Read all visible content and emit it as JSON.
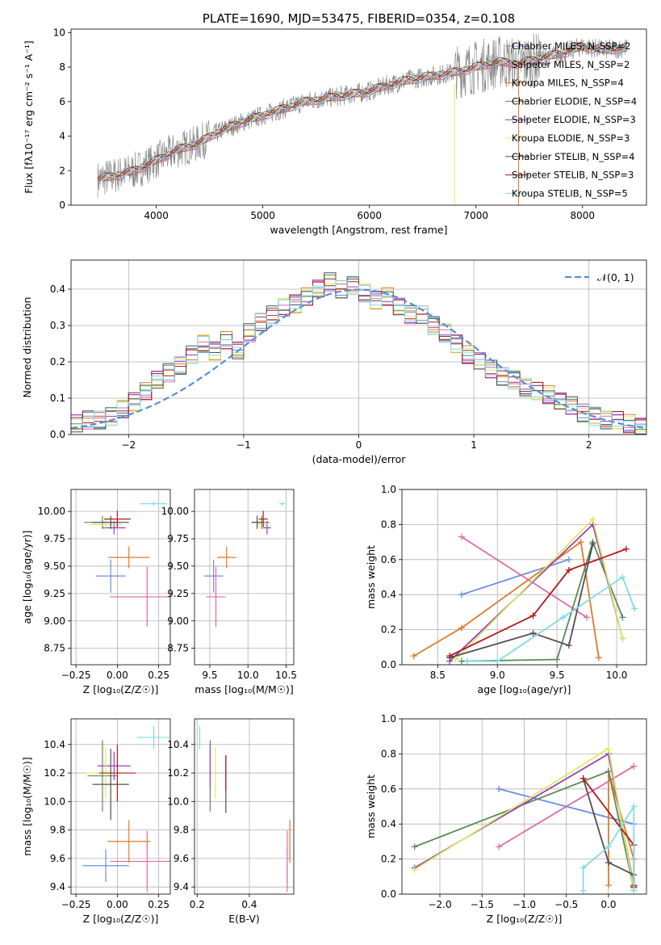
{
  "colors": {
    "chab_miles": "#6a8fdc",
    "salp_miles": "#e06aa8",
    "krou_miles": "#e07a28",
    "chab_elodie": "#5a8a5a",
    "salp_elodie": "#9a3cc0",
    "krou_elodie": "#d8ec60",
    "chab_stelib": "#505050",
    "salp_stelib": "#b01a1a",
    "krou_stelib": "#80dce4",
    "data": "#808080",
    "normal": "#5b8dd6"
  },
  "chart_data": [
    {
      "type": "line",
      "panel": "spectrum",
      "title": "PLATE=1690, MJD=53475, FIBERID=0354, z=0.108",
      "xlabel": "wavelength [Angstrom, rest frame]",
      "ylabel": "Flux [fλ10⁻¹⁷ erg cm⁻² s⁻¹ A⁻¹]",
      "xlim": [
        3200,
        8600
      ],
      "ylim": [
        0,
        10.2
      ],
      "xticks": [
        4000,
        5000,
        6000,
        7000,
        8000
      ],
      "yticks": [
        0,
        2,
        4,
        6,
        8,
        10
      ],
      "grid": false,
      "legend": "upper right",
      "x": [
        3450,
        3600,
        3800,
        4000,
        4200,
        4400,
        4600,
        4800,
        5000,
        5200,
        5400,
        5600,
        5800,
        6000,
        6200,
        6400,
        6600,
        6800,
        7000,
        7200,
        7400,
        7600,
        7800,
        8000,
        8200,
        8400
      ],
      "model": [
        1.5,
        1.7,
        2.0,
        2.6,
        3.2,
        3.6,
        4.3,
        4.8,
        5.2,
        5.6,
        6.0,
        6.2,
        6.4,
        6.6,
        7.0,
        7.3,
        7.5,
        7.7,
        8.0,
        8.3,
        8.2,
        8.5,
        8.8,
        9.2,
        9.0,
        9.1
      ],
      "series": [
        {
          "name": "Chabrier MILES, N_SSP=2"
        },
        {
          "name": "Salpeter MILES, N_SSP=2"
        },
        {
          "name": "Kroupa MILES, N_SSP=4"
        },
        {
          "name": "Chabrier ELODIE, N_SSP=4"
        },
        {
          "name": "Salpeter ELODIE, N_SSP=3"
        },
        {
          "name": "Kroupa ELODIE, N_SSP=3"
        },
        {
          "name": "Chabrier STELIB, N_SSP=4"
        },
        {
          "name": "Salpeter STELIB, N_SSP=3"
        },
        {
          "name": "Kroupa STELIB, N_SSP=5"
        }
      ]
    },
    {
      "type": "bar",
      "panel": "residuals",
      "xlabel": "(data-model)/error",
      "ylabel": "Normed distribution",
      "xlim": [
        -2.5,
        2.5
      ],
      "ylim": [
        0,
        0.48
      ],
      "xticks": [
        -2,
        -1,
        0,
        1,
        2
      ],
      "yticks": [
        0.0,
        0.1,
        0.2,
        0.3,
        0.4
      ],
      "grid": true,
      "legend": "upper right",
      "normal_label": "𝒩(0, 1)",
      "bin_width": 0.1,
      "bin_centers": [
        -2.45,
        -2.35,
        -2.25,
        -2.15,
        -2.05,
        -1.95,
        -1.85,
        -1.75,
        -1.65,
        -1.55,
        -1.45,
        -1.35,
        -1.25,
        -1.15,
        -1.05,
        -0.95,
        -0.85,
        -0.75,
        -0.65,
        -0.55,
        -0.45,
        -0.35,
        -0.25,
        -0.15,
        -0.05,
        0.05,
        0.15,
        0.25,
        0.35,
        0.45,
        0.55,
        0.65,
        0.75,
        0.85,
        0.95,
        1.05,
        1.15,
        1.25,
        1.35,
        1.45,
        1.55,
        1.65,
        1.75,
        1.85,
        1.95,
        2.05,
        2.15,
        2.25,
        2.35,
        2.45
      ],
      "values": [
        0.03,
        0.04,
        0.04,
        0.05,
        0.07,
        0.09,
        0.12,
        0.15,
        0.17,
        0.19,
        0.22,
        0.25,
        0.23,
        0.26,
        0.23,
        0.28,
        0.31,
        0.33,
        0.35,
        0.36,
        0.38,
        0.4,
        0.42,
        0.4,
        0.41,
        0.39,
        0.37,
        0.38,
        0.35,
        0.33,
        0.33,
        0.3,
        0.28,
        0.25,
        0.22,
        0.2,
        0.18,
        0.16,
        0.15,
        0.13,
        0.12,
        0.11,
        0.09,
        0.08,
        0.06,
        0.05,
        0.04,
        0.04,
        0.03,
        0.02
      ]
    },
    {
      "type": "scatter",
      "panel": "age-vs-Z",
      "xlabel": "Z [log₁₀(Z/Z☉)]",
      "ylabel": "age  [log₁₀(age/yr)]",
      "xlim": [
        -0.28,
        0.32
      ],
      "ylim": [
        8.6,
        10.2
      ],
      "xticks": [
        -0.25,
        0.0,
        0.25
      ],
      "xticklabels": [
        "−0.25",
        "0.00",
        "0.25"
      ],
      "yticks": [
        8.75,
        9.0,
        9.25,
        9.5,
        9.75,
        10.0
      ],
      "yticklabels": [
        "8.75",
        "9.00",
        "9.25",
        "9.50",
        "9.75",
        "10.00"
      ],
      "grid": true,
      "points": [
        {
          "c": "chab_miles",
          "x": -0.04,
          "y": 9.41,
          "xe": 0.18,
          "ye": 0.3
        },
        {
          "c": "salp_miles",
          "x": 0.18,
          "y": 9.22,
          "xe": 0.45,
          "ye": 0.55
        },
        {
          "c": "krou_miles",
          "x": 0.07,
          "y": 9.58,
          "xe": 0.25,
          "ye": 0.2
        },
        {
          "c": "chab_elodie",
          "x": -0.09,
          "y": 9.9,
          "xe": 0.22,
          "ye": 0.12
        },
        {
          "c": "salp_elodie",
          "x": -0.02,
          "y": 9.85,
          "xe": 0.14,
          "ye": 0.12
        },
        {
          "c": "krou_elodie",
          "x": -0.07,
          "y": 9.88,
          "xe": 0.2,
          "ye": 0.1
        },
        {
          "c": "chab_stelib",
          "x": -0.04,
          "y": 9.9,
          "xe": 0.22,
          "ye": 0.12
        },
        {
          "c": "salp_stelib",
          "x": 0.0,
          "y": 9.93,
          "xe": 0.16,
          "ye": 0.15
        },
        {
          "c": "krou_stelib",
          "x": 0.22,
          "y": 10.07,
          "xe": 0.16,
          "ye": 0.04
        }
      ]
    },
    {
      "type": "scatter",
      "panel": "age-vs-mass",
      "xlabel": "mass [log₁₀(M/M☉)]",
      "ylabel": "",
      "xlim": [
        9.3,
        10.6
      ],
      "ylim": [
        8.6,
        10.2
      ],
      "xticks": [
        9.5,
        10.0,
        10.5
      ],
      "xticklabels": [
        "9.5",
        "10.0",
        "10.5"
      ],
      "yticks": [
        8.75,
        9.0,
        9.25,
        9.5,
        9.75,
        10.0
      ],
      "yticklabels": [
        "8.75",
        "9.00",
        "9.25",
        "9.50",
        "9.75",
        "10.00"
      ],
      "grid": true,
      "points": [
        {
          "c": "chab_miles",
          "x": 9.55,
          "y": 9.41,
          "xe": 0.25,
          "ye": 0.3
        },
        {
          "c": "salp_miles",
          "x": 9.58,
          "y": 9.22,
          "xe": 0.25,
          "ye": 0.55
        },
        {
          "c": "krou_miles",
          "x": 9.72,
          "y": 9.58,
          "xe": 0.25,
          "ye": 0.2
        },
        {
          "c": "chab_elodie",
          "x": 10.18,
          "y": 9.9,
          "xe": 0.2,
          "ye": 0.12
        },
        {
          "c": "salp_elodie",
          "x": 10.25,
          "y": 9.85,
          "xe": 0.1,
          "ye": 0.12
        },
        {
          "c": "krou_elodie",
          "x": 10.2,
          "y": 9.88,
          "xe": 0.15,
          "ye": 0.1
        },
        {
          "c": "chab_stelib",
          "x": 10.12,
          "y": 9.9,
          "xe": 0.15,
          "ye": 0.12
        },
        {
          "c": "salp_stelib",
          "x": 10.2,
          "y": 9.93,
          "xe": 0.12,
          "ye": 0.15
        },
        {
          "c": "krou_stelib",
          "x": 10.45,
          "y": 10.07,
          "xe": 0.08,
          "ye": 0.04
        }
      ]
    },
    {
      "type": "line",
      "panel": "weight-vs-age",
      "xlabel": "age  [log₁₀(age/yr)]",
      "ylabel": "mass weight",
      "xlim": [
        8.2,
        10.25
      ],
      "ylim": [
        0,
        1.0
      ],
      "xticks": [
        8.5,
        9.0,
        9.5,
        10.0
      ],
      "xticklabels": [
        "8.5",
        "9.0",
        "9.5",
        "10.0"
      ],
      "yticks": [
        0.0,
        0.2,
        0.4,
        0.6,
        0.8,
        1.0
      ],
      "yticklabels": [
        "0.0",
        "0.2",
        "0.4",
        "0.6",
        "0.8",
        "1.0"
      ],
      "grid": true,
      "series": [
        {
          "c": "chab_miles",
          "x": [
            8.7,
            9.6
          ],
          "y": [
            0.4,
            0.6
          ]
        },
        {
          "c": "salp_miles",
          "x": [
            8.7,
            9.75
          ],
          "y": [
            0.73,
            0.27
          ]
        },
        {
          "c": "krou_miles",
          "x": [
            8.3,
            8.7,
            9.7,
            9.85
          ],
          "y": [
            0.05,
            0.21,
            0.7,
            0.04
          ]
        },
        {
          "c": "chab_elodie",
          "x": [
            8.7,
            9.5,
            9.8,
            10.05
          ],
          "y": [
            0.02,
            0.03,
            0.7,
            0.27
          ]
        },
        {
          "c": "salp_elodie",
          "x": [
            8.6,
            9.8,
            10.05
          ],
          "y": [
            0.02,
            0.8,
            0.15
          ]
        },
        {
          "c": "krou_elodie",
          "x": [
            8.65,
            9.8,
            10.05
          ],
          "y": [
            0.03,
            0.83,
            0.15
          ]
        },
        {
          "c": "chab_stelib",
          "x": [
            8.6,
            9.3,
            9.6,
            9.8
          ],
          "y": [
            0.04,
            0.18,
            0.11,
            0.69
          ]
        },
        {
          "c": "salp_stelib",
          "x": [
            8.6,
            9.3,
            9.6,
            10.08
          ],
          "y": [
            0.05,
            0.28,
            0.54,
            0.66
          ]
        },
        {
          "c": "krou_stelib",
          "x": [
            8.75,
            9.0,
            9.55,
            10.05,
            10.15
          ],
          "y": [
            0.02,
            0.02,
            0.27,
            0.5,
            0.32
          ]
        }
      ]
    },
    {
      "type": "scatter",
      "panel": "mass-vs-Z",
      "xlabel": "Z [log₁₀(Z/Z☉)]",
      "ylabel": "mass [log₁₀(M/M☉)]",
      "xlim": [
        -0.28,
        0.32
      ],
      "ylim": [
        9.35,
        10.58
      ],
      "xticks": [
        -0.25,
        0.0,
        0.25
      ],
      "xticklabels": [
        "−0.25",
        "0.00",
        "0.25"
      ],
      "yticks": [
        9.4,
        9.6,
        9.8,
        10.0,
        10.2,
        10.4
      ],
      "yticklabels": [
        "9.4",
        "9.6",
        "9.8",
        "10.0",
        "10.2",
        "10.4"
      ],
      "grid": true,
      "points": [
        {
          "c": "chab_miles",
          "x": -0.07,
          "y": 9.55,
          "xe": 0.28,
          "ye": 0.23
        },
        {
          "c": "salp_miles",
          "x": 0.18,
          "y": 9.58,
          "xe": 0.45,
          "ye": 0.43
        },
        {
          "c": "krou_miles",
          "x": 0.07,
          "y": 9.72,
          "xe": 0.26,
          "ye": 0.3
        },
        {
          "c": "chab_elodie",
          "x": -0.09,
          "y": 10.18,
          "xe": 0.18,
          "ye": 0.5
        },
        {
          "c": "salp_elodie",
          "x": -0.02,
          "y": 10.25,
          "xe": 0.2,
          "ye": 0.2
        },
        {
          "c": "krou_elodie",
          "x": -0.07,
          "y": 10.2,
          "xe": 0.24,
          "ye": 0.36
        },
        {
          "c": "chab_stelib",
          "x": -0.04,
          "y": 10.12,
          "xe": 0.22,
          "ye": 0.5
        },
        {
          "c": "salp_stelib",
          "x": 0.0,
          "y": 10.2,
          "xe": 0.22,
          "ye": 0.4
        },
        {
          "c": "krou_stelib",
          "x": 0.22,
          "y": 10.45,
          "xe": 0.2,
          "ye": 0.16
        }
      ]
    },
    {
      "type": "scatter",
      "panel": "mass-vs-ebv",
      "xlabel": "E(B-V)",
      "ylabel": "",
      "xlim": [
        0.19,
        0.57
      ],
      "ylim": [
        9.35,
        10.58
      ],
      "xticks": [
        0.2,
        0.4
      ],
      "xticklabels": [
        "0.2",
        "0.4"
      ],
      "yticks": [
        9.4,
        9.6,
        9.8,
        10.0,
        10.2,
        10.4
      ],
      "yticklabels": [
        "9.4",
        "9.6",
        "9.8",
        "10.0",
        "10.2",
        "10.4"
      ],
      "grid": true,
      "points": [
        {
          "c": "chab_miles",
          "x": 0.545,
          "y": 9.55,
          "xe": 0,
          "ye": 0.23
        },
        {
          "c": "salp_miles",
          "x": 0.545,
          "y": 9.58,
          "xe": 0,
          "ye": 0.43
        },
        {
          "c": "krou_miles",
          "x": 0.555,
          "y": 9.72,
          "xe": 0,
          "ye": 0.3
        },
        {
          "c": "chab_elodie",
          "x": 0.25,
          "y": 10.18,
          "xe": 0,
          "ye": 0.5
        },
        {
          "c": "salp_elodie",
          "x": 0.25,
          "y": 10.25,
          "xe": 0,
          "ye": 0.3
        },
        {
          "c": "krou_elodie",
          "x": 0.27,
          "y": 10.2,
          "xe": 0,
          "ye": 0.36
        },
        {
          "c": "chab_stelib",
          "x": 0.31,
          "y": 10.12,
          "xe": 0,
          "ye": 0.4
        },
        {
          "c": "salp_stelib",
          "x": 0.31,
          "y": 10.2,
          "xe": 0,
          "ye": 0.25
        },
        {
          "c": "krou_stelib",
          "x": 0.21,
          "y": 10.45,
          "xe": 0,
          "ye": 0.16
        }
      ]
    },
    {
      "type": "line",
      "panel": "weight-vs-Z",
      "xlabel": "Z [log₁₀(Z/Z☉)]",
      "ylabel": "mass weight",
      "xlim": [
        -2.45,
        0.45
      ],
      "ylim": [
        0,
        1.0
      ],
      "xticks": [
        -2.0,
        -1.5,
        -1.0,
        -0.5,
        0.0
      ],
      "xticklabels": [
        "−2.0",
        "−1.5",
        "−1.0",
        "−0.5",
        "0.0"
      ],
      "yticks": [
        0.0,
        0.2,
        0.4,
        0.6,
        0.8,
        1.0
      ],
      "yticklabels": [
        "0.0",
        "0.2",
        "0.4",
        "0.6",
        "0.8",
        "1.0"
      ],
      "grid": true,
      "series": [
        {
          "c": "chab_miles",
          "x": [
            -1.3,
            0.3
          ],
          "y": [
            0.6,
            0.4
          ]
        },
        {
          "c": "salp_miles",
          "x": [
            -1.3,
            0.3
          ],
          "y": [
            0.27,
            0.73
          ]
        },
        {
          "c": "krou_miles",
          "x": [
            0.0,
            0.0,
            0.3,
            0.3
          ],
          "y": [
            0.05,
            0.7,
            0.2,
            0.04
          ]
        },
        {
          "c": "chab_elodie",
          "x": [
            -2.3,
            0.0,
            0.3
          ],
          "y": [
            0.27,
            0.7,
            0.03
          ]
        },
        {
          "c": "salp_elodie",
          "x": [
            -2.3,
            0.0,
            0.3
          ],
          "y": [
            0.15,
            0.8,
            0.05
          ]
        },
        {
          "c": "krou_elodie",
          "x": [
            -2.3,
            0.0,
            0.3
          ],
          "y": [
            0.14,
            0.83,
            0.03
          ]
        },
        {
          "c": "chab_stelib",
          "x": [
            -0.3,
            0.0,
            0.3,
            0.3
          ],
          "y": [
            0.66,
            0.18,
            0.11,
            0.04
          ]
        },
        {
          "c": "salp_stelib",
          "x": [
            -0.3,
            0.3,
            0.3,
            0.3
          ],
          "y": [
            0.66,
            0.28,
            0.05,
            0.04
          ]
        },
        {
          "c": "krou_stelib",
          "x": [
            -0.3,
            -0.3,
            0.0,
            0.3,
            0.3
          ],
          "y": [
            0.02,
            0.15,
            0.27,
            0.5,
            0.02
          ]
        }
      ]
    }
  ]
}
